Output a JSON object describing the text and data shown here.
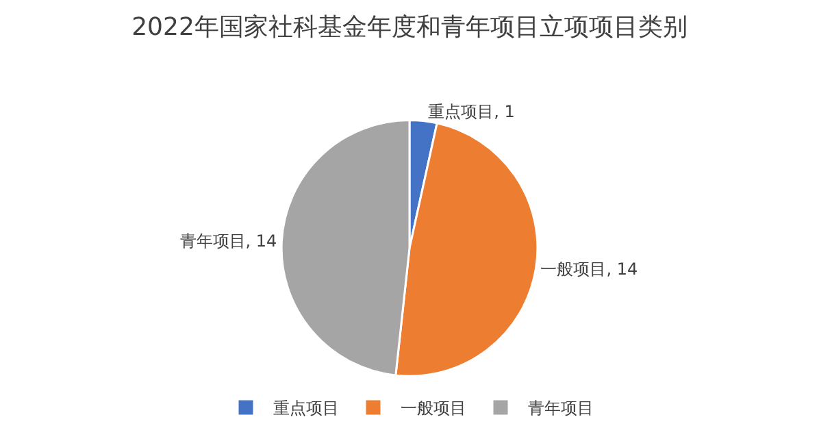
{
  "chart_data": {
    "type": "pie",
    "title": "2022年国家社科基金年度和青年项目立项项目类别",
    "categories": [
      "重点项目",
      "一般项目",
      "青年项目"
    ],
    "values": [
      1,
      14,
      14
    ],
    "colors": [
      "#4472c4",
      "#ed7d31",
      "#a5a5a5"
    ],
    "value_labels": [
      "重点项目, 1",
      "一般项目, 14",
      "青年项目, 14"
    ],
    "legend": "bottom"
  }
}
